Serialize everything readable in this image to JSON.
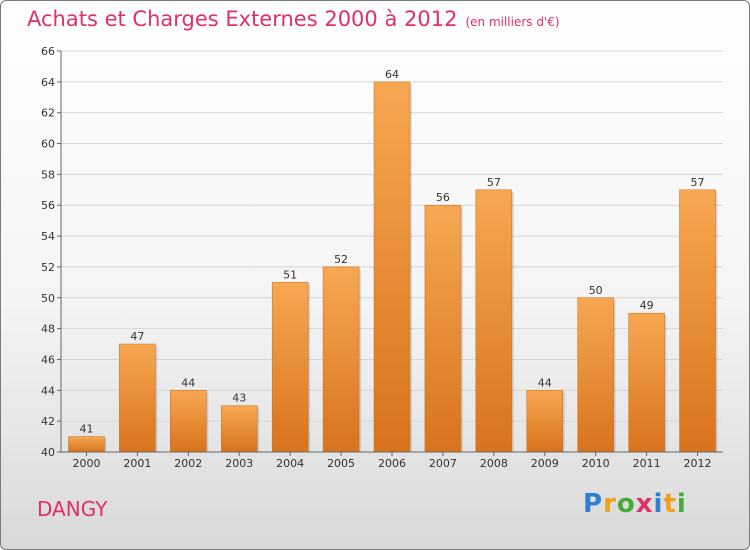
{
  "title": "Achats et Charges Externes 2000 à 2012",
  "unit_note": "(en milliers d'€)",
  "location": "DANGY",
  "brand": "Proxiti",
  "colors": {
    "title": "#e0306a",
    "bar_light": "#f7a752",
    "bar_dark": "#d8731c"
  },
  "chart_data": {
    "type": "bar",
    "title": "Achats et Charges Externes 2000 à 2012",
    "categories": [
      "2000",
      "2001",
      "2002",
      "2003",
      "2004",
      "2005",
      "2006",
      "2007",
      "2008",
      "2009",
      "2010",
      "2011",
      "2012"
    ],
    "values": [
      41,
      47,
      44,
      43,
      51,
      52,
      64,
      56,
      57,
      44,
      50,
      49,
      57
    ],
    "ylim": [
      40,
      66
    ],
    "yticks": [
      40,
      42,
      44,
      46,
      48,
      50,
      52,
      54,
      56,
      58,
      60,
      62,
      64,
      66
    ],
    "grid": true,
    "legend": "none"
  }
}
